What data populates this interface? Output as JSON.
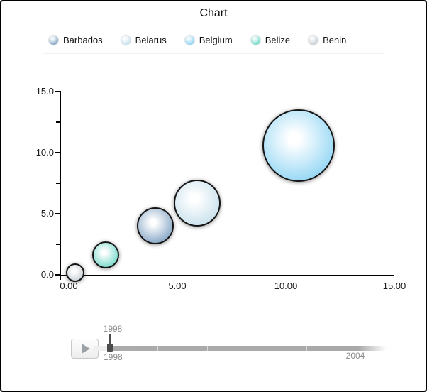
{
  "title": "Chart",
  "legend": {
    "items": [
      {
        "label": "Barbados",
        "color": "#6e94ba",
        "highlight": "#dce8f2"
      },
      {
        "label": "Belarus",
        "color": "#bfdbe9",
        "highlight": "#eef7fb"
      },
      {
        "label": "Belgium",
        "color": "#7dcef2",
        "highlight": "#d8f1fc"
      },
      {
        "label": "Belize",
        "color": "#5dd2c0",
        "highlight": "#d2f4ee"
      },
      {
        "label": "Benin",
        "color": "#c2c9cf",
        "highlight": "#eceff1"
      }
    ]
  },
  "chart_data": {
    "type": "bubble",
    "title": "Chart",
    "xlabel": "",
    "ylabel": "",
    "xlim": [
      0,
      15
    ],
    "ylim": [
      0,
      15
    ],
    "x_tick_values": [
      0,
      5,
      10,
      15
    ],
    "x_tick_labels": [
      "0.00",
      "5.00",
      "10.00",
      "15.00"
    ],
    "y_tick_values": [
      0,
      5,
      10,
      15
    ],
    "y_tick_labels": [
      "0.0",
      "5.0",
      "10.0",
      "15.0"
    ],
    "y_minor_tick_values": [
      2.5,
      7.5,
      12.5
    ],
    "grid": true,
    "legend_position": "top",
    "series": [
      {
        "name": "Benin",
        "x": 0.3,
        "y": 0.2,
        "radius_px": 13,
        "color": "#c2c9cf",
        "highlight": "#ffffff"
      },
      {
        "name": "Belize",
        "x": 1.7,
        "y": 1.6,
        "radius_px": 19,
        "color": "#5dd2c0",
        "highlight": "#ffffff"
      },
      {
        "name": "Barbados",
        "x": 4.0,
        "y": 4.0,
        "radius_px": 26,
        "color": "#6e94ba",
        "highlight": "#ffffff"
      },
      {
        "name": "Belarus",
        "x": 5.9,
        "y": 5.9,
        "radius_px": 33,
        "color": "#bfdbe9",
        "highlight": "#ffffff"
      },
      {
        "name": "Belgium",
        "x": 10.6,
        "y": 10.6,
        "radius_px": 51,
        "color": "#7dcef2",
        "highlight": "#ffffff"
      }
    ]
  },
  "timeline": {
    "current_year": "1998",
    "start_year": "1998",
    "end_year": "2004"
  }
}
